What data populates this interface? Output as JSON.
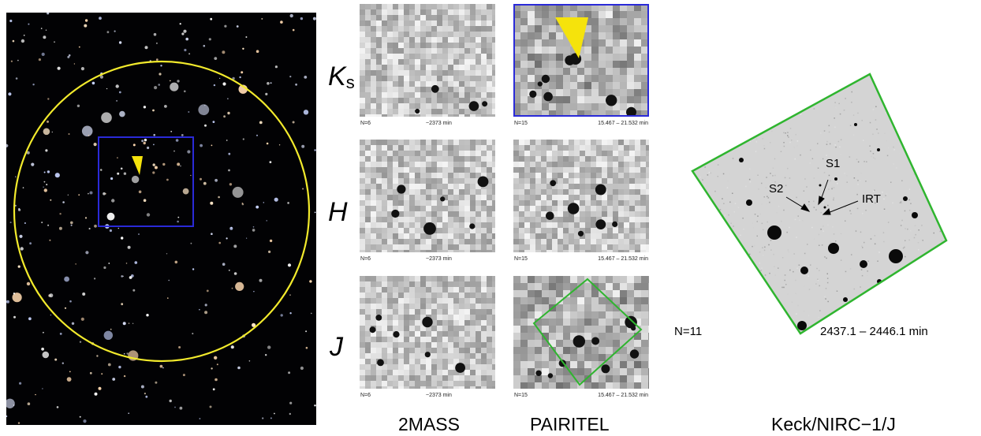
{
  "bands": {
    "ks": "K",
    "ks_sub": "s",
    "h": "H",
    "j": "J"
  },
  "columns": {
    "twomass": "2MASS",
    "pairitel": "PAIRITEL",
    "keck": "Keck/NIRC−1/J"
  },
  "tile_captions": {
    "twomass_n": "N=6",
    "twomass_t": "~2373 min",
    "pairitel_n": "N=15",
    "pairitel_t": "15.467 – 21.532 min"
  },
  "keck": {
    "n": "N=11",
    "time": "2437.1 – 2446.1 min",
    "s1": "S1",
    "s2": "S2",
    "irt": "IRT"
  },
  "colors": {
    "circle": "#f2ea2c",
    "arrowhead": "#f5e30c",
    "blue_box": "#2a2ad8",
    "green_box": "#2fb52f"
  }
}
